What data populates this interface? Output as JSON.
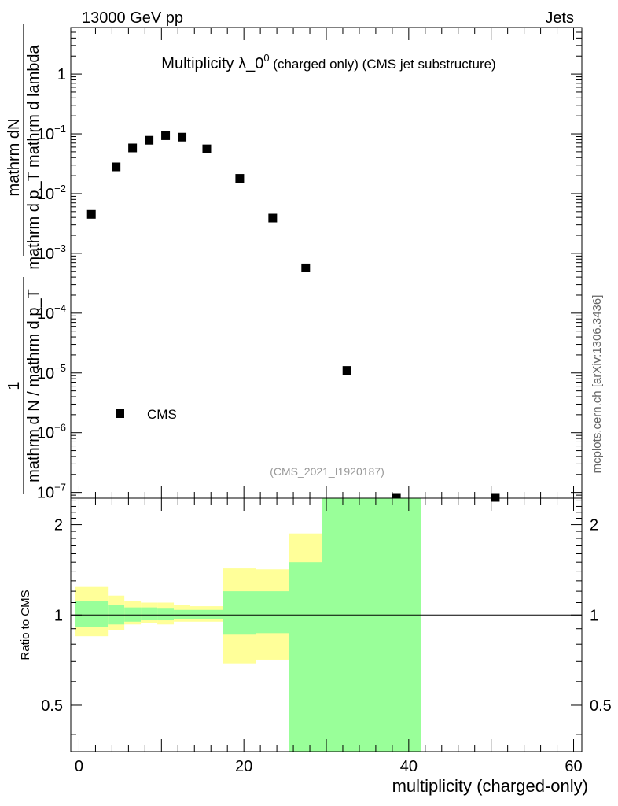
{
  "header": {
    "left": "13000 GeV pp",
    "right": "Jets"
  },
  "side_label": "mcplots.cern.ch [arXiv:1306.3436]",
  "chart_data": [
    {
      "type": "scatter",
      "title_main": "Multiplicity λ_0",
      "title_sup": "0",
      "title_rest": " (charged only) (CMS jet substructure)",
      "analysis_tag": "(CMS_2021_I1920187)",
      "ylabel_numerator": "mathrm dN",
      "ylabel_denominator": "mathrm d p_T mathrm d lambda",
      "ylabel_prefix_top": "1",
      "ylabel_prefix_bottom": "mathrm d N / mathrm d p_T",
      "yscale": "log",
      "xlim": [
        -1,
        61
      ],
      "ylim": [
        8e-08,
        6
      ],
      "y_ticks": [
        {
          "value": 1,
          "mant": "1",
          "exp": ""
        },
        {
          "value": 0.1,
          "mant": "10",
          "exp": "−1"
        },
        {
          "value": 0.01,
          "mant": "10",
          "exp": "−2"
        },
        {
          "value": 0.001,
          "mant": "10",
          "exp": "−3"
        },
        {
          "value": 0.0001,
          "mant": "10",
          "exp": "−4"
        },
        {
          "value": 1e-05,
          "mant": "10",
          "exp": "−5"
        },
        {
          "value": 1e-06,
          "mant": "10",
          "exp": "−6"
        },
        {
          "value": 1e-07,
          "mant": "10",
          "exp": "−7"
        }
      ],
      "legend": {
        "entry": "CMS",
        "placement": "lower-left"
      },
      "series": [
        {
          "name": "CMS",
          "x": [
            1.5,
            4.5,
            6.5,
            8.5,
            10.5,
            12.5,
            15.5,
            19.5,
            23.5,
            27.5,
            32.5,
            38.5,
            50.5
          ],
          "y": [
            0.0045,
            0.028,
            0.058,
            0.078,
            0.093,
            0.088,
            0.056,
            0.018,
            0.0039,
            0.00057,
            1.1e-05,
            8e-08,
            8e-08
          ]
        }
      ]
    },
    {
      "type": "area",
      "ylabel": "Ratio to CMS",
      "xlabel": "multiplicity (charged-only)",
      "xlim": [
        -1,
        61
      ],
      "ylim": [
        0.35,
        2.45
      ],
      "x_ticks": [
        0,
        20,
        40,
        60
      ],
      "y_ticks": [
        0.5,
        1,
        2
      ],
      "reference_line": 1,
      "bands": {
        "bins": [
          [
            -0.5,
            3.5
          ],
          [
            3.5,
            5.5
          ],
          [
            5.5,
            7.5
          ],
          [
            7.5,
            9.5
          ],
          [
            9.5,
            11.5
          ],
          [
            11.5,
            13.5
          ],
          [
            13.5,
            17.5
          ],
          [
            17.5,
            21.5
          ],
          [
            21.5,
            25.5
          ],
          [
            25.5,
            29.5
          ],
          [
            29.5,
            41.5
          ]
        ],
        "stat_low": [
          0.91,
          0.93,
          0.95,
          0.96,
          0.96,
          0.97,
          0.97,
          0.86,
          0.87,
          0.35,
          0.35
        ],
        "stat_high": [
          1.11,
          1.08,
          1.06,
          1.06,
          1.05,
          1.04,
          1.04,
          1.2,
          1.2,
          1.5,
          2.45
        ],
        "total_low": [
          0.85,
          0.89,
          0.93,
          0.94,
          0.93,
          0.95,
          0.95,
          0.69,
          0.71,
          0.6,
          0.35
        ],
        "total_high": [
          1.24,
          1.16,
          1.11,
          1.1,
          1.1,
          1.08,
          1.07,
          1.43,
          1.42,
          1.87,
          2.45
        ],
        "stat_color": "#99ff99",
        "total_color": "#ffff99"
      }
    }
  ]
}
